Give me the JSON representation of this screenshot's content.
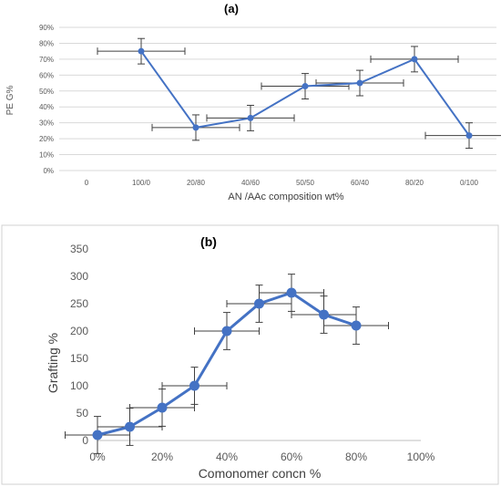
{
  "chart_data": [
    {
      "type": "line",
      "title": "(a)",
      "xlabel": "AN /AAc composition wt%",
      "ylabel": "PE G%",
      "categories": [
        "0",
        "100/0",
        "20/80",
        "40/60",
        "50/50",
        "60/40",
        "80/20",
        "0/100"
      ],
      "y_ticks": [
        "0%",
        "10%",
        "20%",
        "30%",
        "40%",
        "50%",
        "60%",
        "70%",
        "80%",
        "90%"
      ],
      "ylim": [
        0,
        90
      ],
      "series": [
        {
          "values": [
            null,
            75,
            27,
            33,
            53,
            55,
            70,
            22
          ],
          "y_error": [
            null,
            8,
            8,
            8,
            8,
            8,
            8,
            8
          ],
          "x_error": [
            null,
            0.8,
            0.8,
            0.8,
            0.8,
            0.8,
            0.8,
            0.8
          ]
        }
      ],
      "color": "#4472C4",
      "grid": true
    },
    {
      "type": "line",
      "title": "(b)",
      "xlabel": "Comonomer concn %",
      "ylabel": "Grafting %",
      "x": [
        0,
        10,
        20,
        30,
        40,
        50,
        60,
        70,
        80
      ],
      "x_ticks": [
        "0%",
        "20%",
        "40%",
        "60%",
        "80%",
        "100%"
      ],
      "y_ticks": [
        "0",
        "50",
        "100",
        "150",
        "200",
        "250",
        "300",
        "350"
      ],
      "xlim": [
        0,
        100
      ],
      "ylim": [
        0,
        350
      ],
      "series": [
        {
          "values": [
            10,
            25,
            60,
            100,
            200,
            250,
            270,
            230,
            210
          ],
          "y_error": [
            34,
            34,
            34,
            34,
            34,
            34,
            34,
            34,
            34
          ],
          "x_error": [
            10,
            10,
            10,
            10,
            10,
            10,
            10,
            10,
            10
          ]
        }
      ],
      "color": "#4472C4",
      "grid": false
    }
  ]
}
